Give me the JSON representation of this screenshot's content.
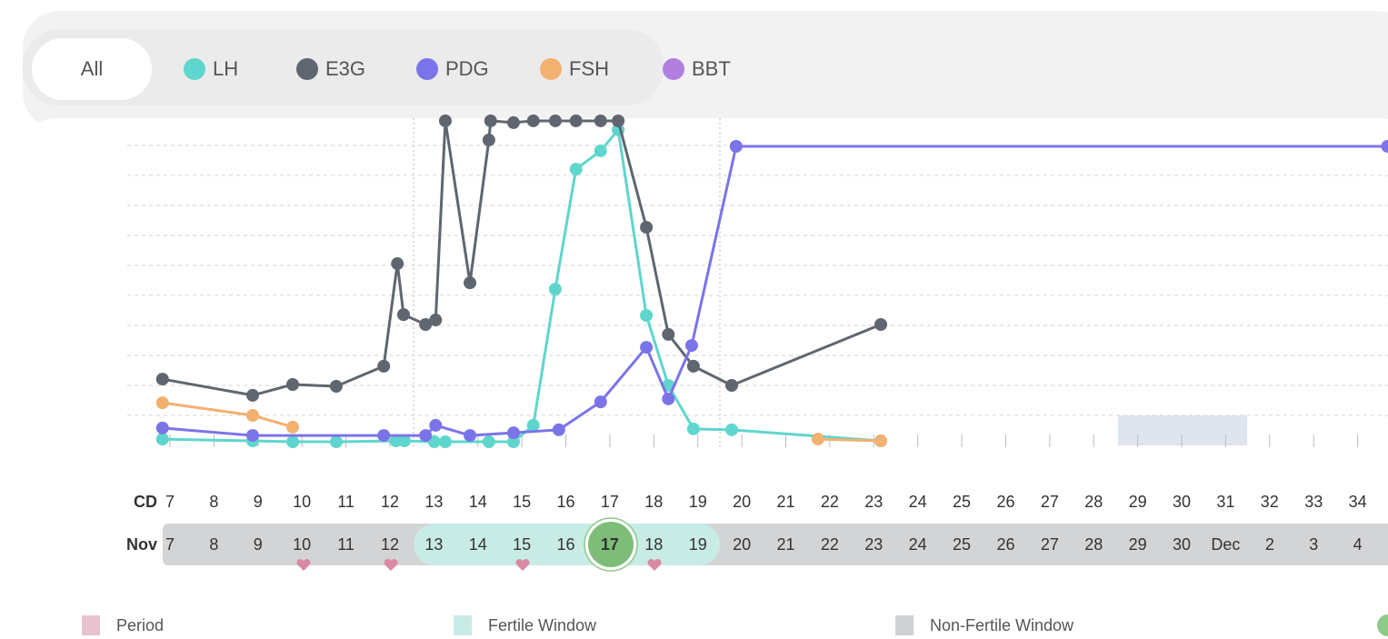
{
  "filter_all": "All",
  "chart_data": {
    "type": "line",
    "xlim": [
      6.5,
      34.69
    ],
    "ylim": [
      0,
      110
    ],
    "yticks": [
      10,
      20,
      30,
      40,
      50,
      60,
      70,
      80,
      90,
      100
    ],
    "grid": true,
    "cycle_days": {
      "label": "CD",
      "values": [
        7,
        8,
        9,
        10,
        11,
        12,
        13,
        14,
        15,
        16,
        17,
        18,
        19,
        20,
        21,
        22,
        23,
        24,
        25,
        26,
        27,
        28,
        29,
        30,
        31,
        32,
        33,
        34
      ]
    },
    "dates": {
      "label": "Nov",
      "values": [
        7,
        8,
        9,
        10,
        11,
        12,
        13,
        14,
        15,
        16,
        17,
        18,
        19,
        20,
        21,
        22,
        23,
        24,
        25,
        26,
        27,
        28,
        29,
        30,
        "Dec",
        2,
        3,
        4
      ]
    },
    "series": [
      {
        "name": "LH",
        "color": "#5fd6cd",
        "x": [
          6.83,
          8.88,
          9.79,
          10.78,
          12.14,
          12.33,
          13.01,
          13.26,
          14.25,
          14.81,
          15.26,
          15.76,
          16.23,
          16.79,
          17.19,
          17.83,
          18.33,
          18.9,
          19.77,
          23.16
        ],
        "values": [
          2.1,
          1.5,
          1.2,
          1.2,
          1.5,
          1.5,
          1.2,
          1.2,
          1.2,
          1.2,
          6.7,
          52.1,
          92.1,
          98.2,
          105.2,
          43.3,
          20,
          5.5,
          5.2,
          1.5
        ]
      },
      {
        "name": "E3G",
        "color": "#5f6670",
        "x": [
          6.83,
          8.88,
          9.79,
          10.78,
          11.86,
          12.17,
          12.31,
          12.81,
          13.04,
          13.26,
          13.82,
          14.25,
          14.29,
          14.81,
          15.26,
          15.76,
          16.23,
          16.79,
          17.19,
          17.83,
          18.33,
          18.9,
          19.77,
          23.16
        ],
        "values": [
          22.1,
          16.7,
          20.3,
          19.7,
          26.4,
          60.6,
          43.6,
          40.3,
          41.8,
          108.2,
          54.2,
          101.8,
          108.2,
          107.6,
          108.2,
          108.2,
          108.2,
          108.2,
          108.2,
          72.7,
          37,
          26.4,
          20,
          40.3
        ]
      },
      {
        "name": "PDG",
        "color": "#7b74e8",
        "x": [
          6.83,
          8.88,
          11.86,
          12.81,
          13.04,
          13.82,
          14.81,
          15.84,
          16.79,
          17.83,
          18.33,
          18.86,
          19.87,
          34.68
        ],
        "values": [
          5.8,
          3.3,
          3.3,
          3.3,
          6.7,
          3.3,
          4.2,
          5.2,
          14.5,
          32.7,
          15.5,
          33.3,
          99.7,
          99.7
        ]
      },
      {
        "name": "FSH",
        "color": "#f2b170",
        "x": [
          6.83,
          8.88,
          9.79,
          15,
          21.73,
          23.16
        ],
        "values": [
          14.2,
          10,
          6.1,
          null,
          2.1,
          1.5
        ]
      },
      {
        "name": "BBT",
        "color": "#b07fe0",
        "x": [],
        "values": []
      }
    ],
    "legend": [
      {
        "label": "Period",
        "color": "#e8c3cf"
      },
      {
        "label": "Fertile Window",
        "color": "#c8ebe5"
      },
      {
        "label": "Non-Fertile Window",
        "color": "#cfd1d4"
      }
    ]
  }
}
